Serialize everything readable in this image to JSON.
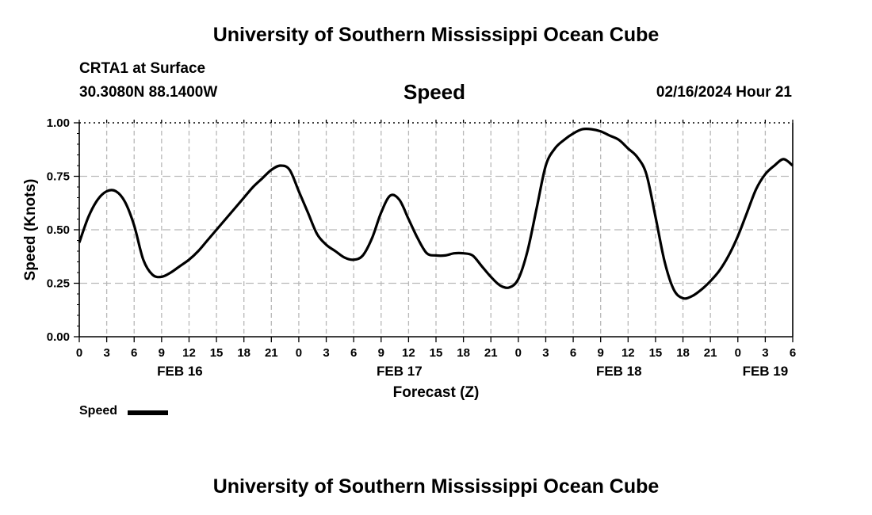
{
  "header": {
    "title_top": "University of Southern Mississippi Ocean Cube",
    "station": "CRTA1 at Surface",
    "coords": "30.3080N  88.1400W",
    "variable": "Speed",
    "datetime": "02/16/2024 Hour 21",
    "title_bottom": "University of Southern Mississippi Ocean Cube"
  },
  "legend": {
    "label": "Speed"
  },
  "chart_data": {
    "type": "line",
    "title": "Speed",
    "xlabel": "Forecast (Z)",
    "ylabel": "Speed (Knots)",
    "xlim": [
      0,
      78
    ],
    "ylim": [
      0,
      1
    ],
    "y_ticks": [
      {
        "value": 0,
        "label": "0.00"
      },
      {
        "value": 0.25,
        "label": "0.25"
      },
      {
        "value": 0.5,
        "label": "0.50"
      },
      {
        "value": 0.75,
        "label": "0.75"
      },
      {
        "value": 1.0,
        "label": "1.00"
      }
    ],
    "x_ticks": [
      {
        "value": 0,
        "label": "0"
      },
      {
        "value": 3,
        "label": "3"
      },
      {
        "value": 6,
        "label": "6"
      },
      {
        "value": 9,
        "label": "9"
      },
      {
        "value": 12,
        "label": "12"
      },
      {
        "value": 15,
        "label": "15"
      },
      {
        "value": 18,
        "label": "18"
      },
      {
        "value": 21,
        "label": "21"
      },
      {
        "value": 24,
        "label": "0"
      },
      {
        "value": 27,
        "label": "3"
      },
      {
        "value": 30,
        "label": "6"
      },
      {
        "value": 33,
        "label": "9"
      },
      {
        "value": 36,
        "label": "12"
      },
      {
        "value": 39,
        "label": "15"
      },
      {
        "value": 42,
        "label": "18"
      },
      {
        "value": 45,
        "label": "21"
      },
      {
        "value": 48,
        "label": "0"
      },
      {
        "value": 51,
        "label": "3"
      },
      {
        "value": 54,
        "label": "6"
      },
      {
        "value": 57,
        "label": "9"
      },
      {
        "value": 60,
        "label": "12"
      },
      {
        "value": 63,
        "label": "15"
      },
      {
        "value": 66,
        "label": "18"
      },
      {
        "value": 69,
        "label": "21"
      },
      {
        "value": 72,
        "label": "0"
      },
      {
        "value": 75,
        "label": "3"
      },
      {
        "value": 78,
        "label": "6"
      }
    ],
    "date_labels": [
      {
        "value": 11,
        "label": "FEB 16"
      },
      {
        "value": 35,
        "label": "FEB 17"
      },
      {
        "value": 59,
        "label": "FEB 18"
      },
      {
        "value": 75,
        "label": "FEB 19"
      }
    ],
    "grid": true,
    "series": [
      {
        "name": "Speed",
        "x": [
          0,
          1,
          2,
          3,
          4,
          5,
          6,
          7,
          8,
          9,
          10,
          11,
          12,
          13,
          14,
          15,
          16,
          17,
          18,
          19,
          20,
          21,
          22,
          23,
          24,
          25,
          26,
          27,
          28,
          29,
          30,
          31,
          32,
          33,
          34,
          35,
          36,
          37,
          38,
          39,
          40,
          41,
          42,
          43,
          44,
          45,
          46,
          47,
          48,
          49,
          50,
          51,
          52,
          53,
          54,
          55,
          56,
          57,
          58,
          59,
          60,
          61,
          62,
          63,
          64,
          65,
          66,
          67,
          68,
          69,
          70,
          71,
          72,
          73,
          74,
          75,
          76,
          77,
          78
        ],
        "values": [
          0.44,
          0.56,
          0.64,
          0.68,
          0.68,
          0.63,
          0.52,
          0.36,
          0.29,
          0.28,
          0.3,
          0.33,
          0.36,
          0.4,
          0.45,
          0.5,
          0.55,
          0.6,
          0.65,
          0.7,
          0.74,
          0.78,
          0.8,
          0.78,
          0.68,
          0.58,
          0.48,
          0.43,
          0.4,
          0.37,
          0.36,
          0.38,
          0.46,
          0.58,
          0.66,
          0.64,
          0.55,
          0.46,
          0.39,
          0.38,
          0.38,
          0.39,
          0.39,
          0.38,
          0.33,
          0.28,
          0.24,
          0.23,
          0.27,
          0.4,
          0.6,
          0.8,
          0.88,
          0.92,
          0.95,
          0.97,
          0.97,
          0.96,
          0.94,
          0.92,
          0.88,
          0.84,
          0.76,
          0.56,
          0.35,
          0.22,
          0.18,
          0.19,
          0.22,
          0.26,
          0.31,
          0.38,
          0.47,
          0.58,
          0.69,
          0.76,
          0.8,
          0.83,
          0.8
        ]
      }
    ]
  }
}
